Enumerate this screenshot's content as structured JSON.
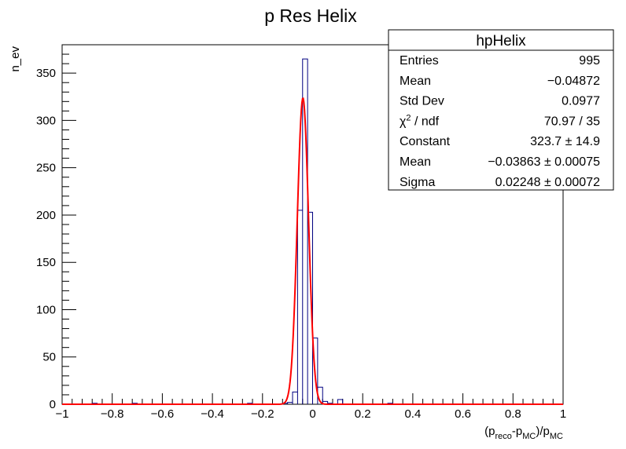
{
  "chart_data": {
    "type": "histogram",
    "title": "p Res Helix",
    "xlabel_parts": [
      "(p",
      "reco",
      "-p",
      "MC",
      ")/p",
      "MC"
    ],
    "ylabel": "n_ev",
    "xlim": [
      -1,
      1
    ],
    "ylim": [
      0,
      380
    ],
    "x_ticks": [
      -1,
      -0.8,
      -0.6,
      -0.4,
      -0.2,
      0,
      0.2,
      0.4,
      0.6,
      0.8,
      1
    ],
    "x_tick_labels": [
      "−1",
      "−0.8",
      "−0.6",
      "−0.4",
      "−0.2",
      "0",
      "0.2",
      "0.4",
      "0.6",
      "0.8",
      "1"
    ],
    "y_ticks": [
      0,
      50,
      100,
      150,
      200,
      250,
      300,
      350
    ],
    "y_tick_labels": [
      "0",
      "50",
      "100",
      "150",
      "200",
      "250",
      "300",
      "350"
    ],
    "bin_width": 0.02,
    "bins": [
      {
        "x0": -0.88,
        "count": 1
      },
      {
        "x0": -0.72,
        "count": 1
      },
      {
        "x0": -0.26,
        "count": 1
      },
      {
        "x0": -0.12,
        "count": 1
      },
      {
        "x0": -0.1,
        "count": 2
      },
      {
        "x0": -0.08,
        "count": 13
      },
      {
        "x0": -0.06,
        "count": 205
      },
      {
        "x0": -0.04,
        "count": 365
      },
      {
        "x0": -0.02,
        "count": 203
      },
      {
        "x0": 0.0,
        "count": 70
      },
      {
        "x0": 0.02,
        "count": 18
      },
      {
        "x0": 0.04,
        "count": 3
      },
      {
        "x0": 0.06,
        "count": 1
      },
      {
        "x0": 0.1,
        "count": 5
      },
      {
        "x0": 0.3,
        "count": 1
      }
    ],
    "hist_color": "#000080",
    "fit": {
      "function": "gaus",
      "constant": 323.7,
      "mean": -0.03863,
      "sigma": 0.02248,
      "color": "#ff0000"
    },
    "stats_box": {
      "title": "hpHelix",
      "rows": [
        {
          "label": "Entries",
          "value": "995"
        },
        {
          "label": "Mean",
          "value": "−0.04872"
        },
        {
          "label": "Std Dev",
          "value": "0.0977"
        },
        {
          "label": "χ",
          "sup": "2",
          "label_rest": " / ndf",
          "value": "70.97 / 35"
        },
        {
          "label": "Constant",
          "value": "323.7 ± 14.9"
        },
        {
          "label": "Mean",
          "value": "−0.03863 ± 0.00075"
        },
        {
          "label": "Sigma",
          "value": "0.02248 ± 0.00072"
        }
      ]
    }
  }
}
